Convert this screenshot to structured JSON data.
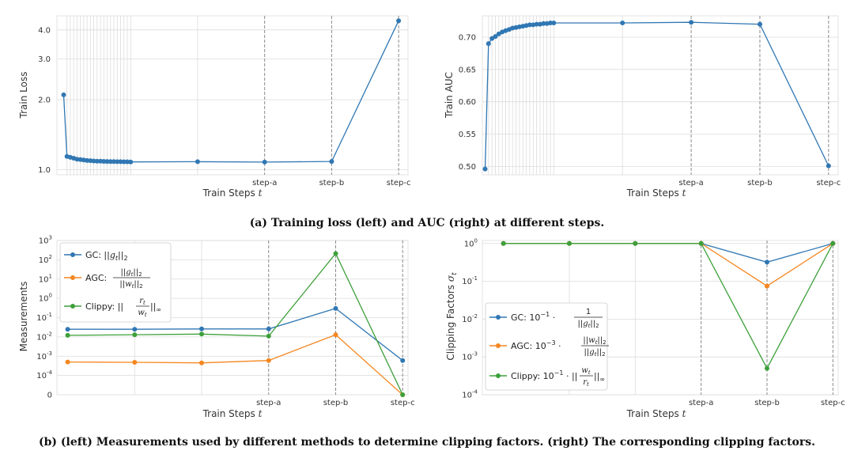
{
  "captions": {
    "a": "(a) Training loss (left) and AUC (right) at different steps.",
    "b": "(b) (left) Measurements used by different methods to determine clipping factors. (right) The corresponding clipping factors."
  },
  "colors": {
    "blue": "#3077b3",
    "orange": "#f5861f",
    "green": "#3da03a",
    "grid": "#dcdcdc"
  },
  "chart_data": [
    {
      "id": "train-loss",
      "type": "line",
      "xlabel": "Train Steps t",
      "ylabel": "Train Loss",
      "yscale": "log",
      "ylim": [
        0.95,
        4.6
      ],
      "yticks": [
        1.0,
        2.0,
        3.0,
        4.0
      ],
      "ytick_labels": [
        "1.0",
        "2.0",
        "3.0",
        "4.0"
      ],
      "x": [
        0,
        0.25,
        0.5,
        0.75,
        1,
        1.25,
        1.5,
        1.75,
        2,
        2.25,
        2.5,
        2.75,
        3,
        3.25,
        3.5,
        3.75,
        4,
        4.25,
        4.5,
        4.75,
        5,
        10,
        15,
        20,
        25
      ],
      "xlim": [
        -0.5,
        25.7
      ],
      "vlines_light": [
        0.25,
        0.5,
        0.75,
        1,
        1.25,
        1.5,
        1.75,
        2,
        2.25,
        2.5,
        2.75,
        3,
        3.25,
        3.5,
        3.75,
        4,
        4.25,
        4.5,
        4.75,
        5,
        10
      ],
      "vlines_dashed": [
        15,
        20,
        25
      ],
      "xticks": [
        15,
        20,
        25
      ],
      "xtick_labels": [
        "step-a",
        "step-b",
        "step-c"
      ],
      "series": [
        {
          "name": "loss",
          "color": "blue",
          "values": [
            2.1,
            1.14,
            1.13,
            1.12,
            1.11,
            1.105,
            1.1,
            1.095,
            1.093,
            1.09,
            1.088,
            1.087,
            1.086,
            1.085,
            1.084,
            1.083,
            1.082,
            1.082,
            1.081,
            1.081,
            1.08,
            1.082,
            1.078,
            1.085,
            4.38
          ]
        }
      ]
    },
    {
      "id": "train-auc",
      "type": "line",
      "xlabel": "Train Steps t",
      "ylabel": "Train AUC",
      "yscale": "linear",
      "ylim": [
        0.487,
        0.733
      ],
      "yticks": [
        0.5,
        0.55,
        0.6,
        0.65,
        0.7
      ],
      "ytick_labels": [
        "0.50",
        "0.55",
        "0.60",
        "0.65",
        "0.70"
      ],
      "x": [
        0,
        0.25,
        0.5,
        0.75,
        1,
        1.25,
        1.5,
        1.75,
        2,
        2.25,
        2.5,
        2.75,
        3,
        3.25,
        3.5,
        3.75,
        4,
        4.25,
        4.5,
        4.75,
        5,
        10,
        15,
        20,
        25
      ],
      "xlim": [
        -0.2,
        25.7
      ],
      "vlines_light": [
        0.25,
        0.5,
        0.75,
        1,
        1.25,
        1.5,
        1.75,
        2,
        2.25,
        2.5,
        2.75,
        3,
        3.25,
        3.5,
        3.75,
        4,
        4.25,
        4.5,
        4.75,
        5,
        10
      ],
      "vlines_dashed": [
        15,
        20,
        25
      ],
      "xticks": [
        15,
        20,
        25
      ],
      "xtick_labels": [
        "step-a",
        "step-b",
        "step-c"
      ],
      "series": [
        {
          "name": "auc",
          "color": "blue",
          "values": [
            0.496,
            0.69,
            0.698,
            0.701,
            0.705,
            0.708,
            0.71,
            0.712,
            0.714,
            0.715,
            0.716,
            0.717,
            0.718,
            0.719,
            0.719,
            0.72,
            0.72,
            0.721,
            0.721,
            0.722,
            0.722,
            0.722,
            0.723,
            0.72,
            0.501
          ]
        }
      ]
    },
    {
      "id": "measurements",
      "type": "line",
      "xlabel": "Train Steps t",
      "ylabel": "Measurements",
      "yscale": "symlog",
      "ylim": [
        0,
        1000
      ],
      "ytick_exponents": [
        -4,
        -3,
        -2,
        -1,
        0,
        1,
        2,
        3
      ],
      "ytick_zero_label": "0",
      "x": [
        0,
        5,
        10,
        15,
        20,
        25
      ],
      "xlim": [
        -0.8,
        25.4
      ],
      "vlines_light": [
        5,
        10
      ],
      "vlines_dashed": [
        15,
        20,
        25
      ],
      "xticks": [
        15,
        20,
        25
      ],
      "xtick_labels": [
        "step-a",
        "step-b",
        "step-c"
      ],
      "legend_position": "upper-left",
      "series": [
        {
          "name": "GC",
          "color": "blue",
          "values": [
            0.025,
            0.025,
            0.026,
            0.026,
            0.3,
            0.0006
          ]
        },
        {
          "name": "AGC",
          "color": "orange",
          "values": [
            0.0005,
            0.00048,
            0.00045,
            0.0006,
            0.013,
            0
          ]
        },
        {
          "name": "Clippy",
          "color": "green",
          "values": [
            0.012,
            0.013,
            0.014,
            0.011,
            210,
            0
          ]
        }
      ]
    },
    {
      "id": "clipping-factors",
      "type": "line",
      "xlabel": "Train Steps t",
      "ylabel": "Clipping Factors σt",
      "yscale": "log",
      "ylim": [
        0.0001,
        1.2
      ],
      "ytick_exponents": [
        -4,
        -3,
        -2,
        -1,
        0
      ],
      "x": [
        0,
        5,
        10,
        15,
        20,
        25
      ],
      "xlim": [
        -1.6,
        25.4
      ],
      "vlines_light": [
        5,
        10
      ],
      "vlines_dashed": [
        15,
        20,
        25
      ],
      "xticks": [
        15,
        20,
        25
      ],
      "xtick_labels": [
        "step-a",
        "step-b",
        "step-c"
      ],
      "legend_position": "center-left",
      "series": [
        {
          "name": "GC",
          "color": "blue",
          "values": [
            1,
            1,
            1,
            1,
            0.32,
            1
          ]
        },
        {
          "name": "AGC",
          "color": "orange",
          "values": [
            1,
            1,
            1,
            1,
            0.075,
            1
          ]
        },
        {
          "name": "Clippy",
          "color": "green",
          "values": [
            1,
            1,
            1,
            1,
            0.0005,
            1
          ]
        }
      ]
    }
  ]
}
